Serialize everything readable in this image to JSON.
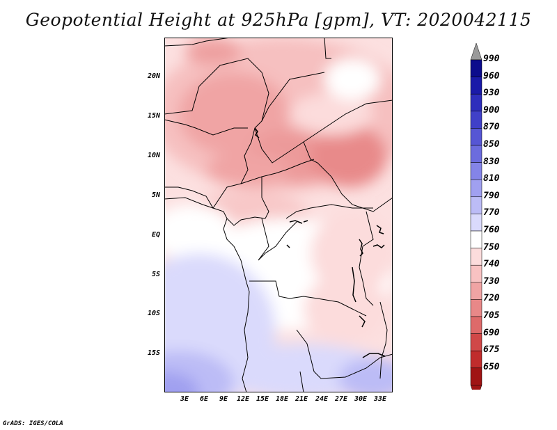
{
  "title": "Geopotential Height at 925hPa [gpm], VT: 2020042115",
  "footer": "GrADS: IGES/COLA",
  "map": {
    "lat_labels": [
      "20N",
      "15N",
      "10N",
      "5N",
      "EQ",
      "5S",
      "10S",
      "15S"
    ],
    "lon_labels": [
      "3E",
      "6E",
      "9E",
      "12E",
      "15E",
      "18E",
      "21E",
      "24E",
      "27E",
      "30E",
      "33E"
    ]
  },
  "colorbar": {
    "levels": [
      "990",
      "960",
      "930",
      "900",
      "870",
      "850",
      "830",
      "810",
      "790",
      "770",
      "760",
      "750",
      "740",
      "730",
      "720",
      "705",
      "690",
      "675",
      "650"
    ],
    "colors": [
      "#0c0c8c",
      "#1a1aa8",
      "#2e2ebc",
      "#4040c8",
      "#5656d4",
      "#6c6cde",
      "#8484e8",
      "#a0a0f0",
      "#bcbcf6",
      "#dadafc",
      "#ffffff",
      "#fcdcdc",
      "#f8c2c2",
      "#f0a4a4",
      "#e88888",
      "#de6a6a",
      "#d04848",
      "#c02c2c",
      "#a01414"
    ],
    "top_arrow_color": "#9a9a9a",
    "bottom_arrow_color": "#a01414"
  }
}
